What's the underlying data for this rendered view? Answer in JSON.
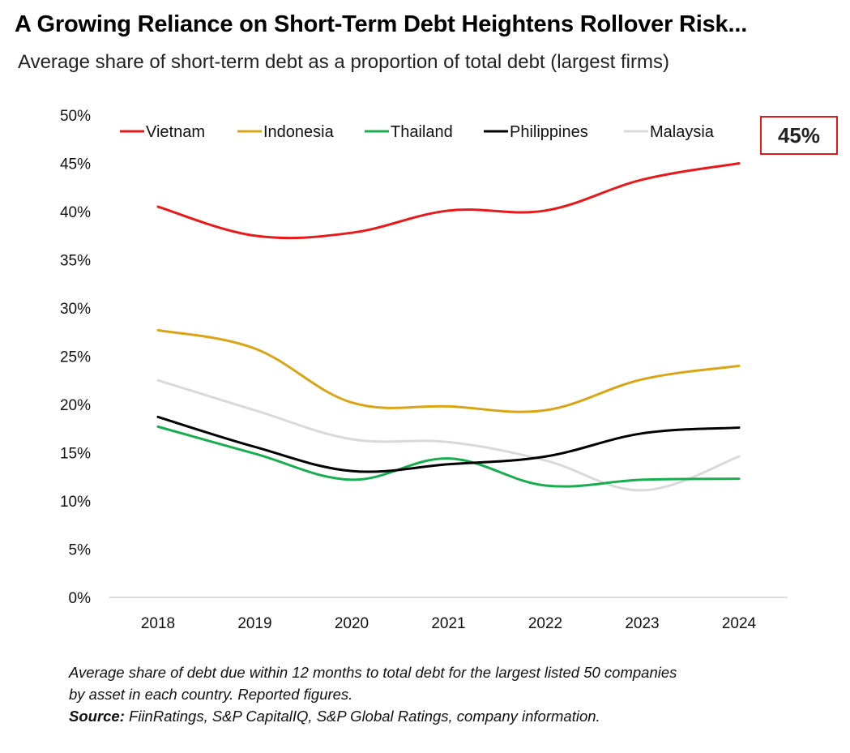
{
  "title": "A Growing Reliance on Short-Term Debt Heightens Rollover Risk...",
  "subtitle": "Average share of short-term debt as a proportion of total debt (largest firms)",
  "callout": "45%",
  "footnote": {
    "line1": "Average share of debt due within 12 months to total debt for the largest listed 50 companies",
    "line2": "by asset in each country. Reported figures.",
    "source_label": "Source:",
    "source_text": " FiinRatings, S&P CapitalIQ, S&P Global Ratings, company information."
  },
  "chart_data": {
    "type": "line",
    "title": "",
    "xlabel": "",
    "ylabel": "",
    "categories": [
      "2018",
      "2019",
      "2020",
      "2021",
      "2022",
      "2023",
      "2024"
    ],
    "y_ticks": [
      "0%",
      "5%",
      "10%",
      "15%",
      "20%",
      "25%",
      "30%",
      "35%",
      "40%",
      "45%",
      "50%"
    ],
    "ylim": [
      0,
      50
    ],
    "grid": false,
    "legend_position": "top",
    "series": [
      {
        "name": "Vietnam",
        "color": "#e8191b",
        "values": [
          40.5,
          37.5,
          37.8,
          40.1,
          40.1,
          43.3,
          45.0
        ]
      },
      {
        "name": "Indonesia",
        "color": "#d9a514",
        "values": [
          27.7,
          25.8,
          20.2,
          19.8,
          19.4,
          22.6,
          24.0
        ]
      },
      {
        "name": "Thailand",
        "color": "#18ae50",
        "values": [
          17.7,
          14.9,
          12.2,
          14.4,
          11.6,
          12.2,
          12.3
        ]
      },
      {
        "name": "Philippines",
        "color": "#000000",
        "values": [
          18.7,
          15.6,
          13.1,
          13.8,
          14.6,
          17.0,
          17.6
        ]
      },
      {
        "name": "Malaysia",
        "color": "#d9d9d9",
        "values": [
          22.5,
          19.4,
          16.4,
          16.1,
          14.2,
          11.1,
          14.6
        ]
      }
    ]
  }
}
